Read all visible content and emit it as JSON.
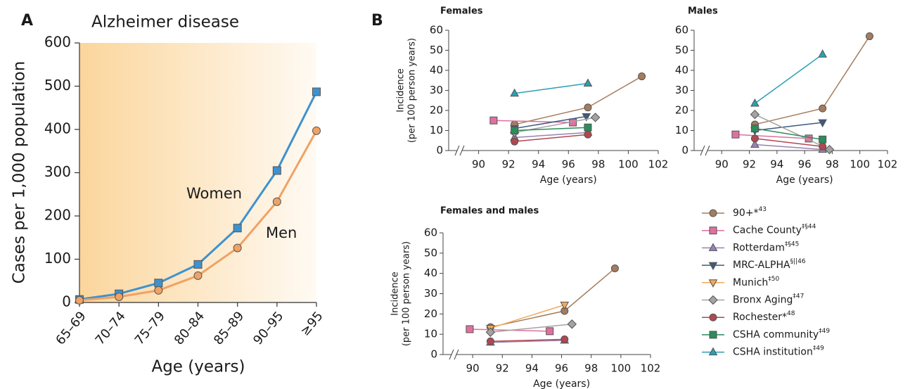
{
  "panels": [
    "A",
    "B"
  ],
  "legend": [
    {
      "name": "90+*",
      "note": "43",
      "color": "#a57c5e",
      "marker": "circle"
    },
    {
      "name": "Cache County",
      "note": "‡§44",
      "color": "#e0709f",
      "marker": "square"
    },
    {
      "name": "Rotterdam",
      "note": "‡§45",
      "color": "#9882b4",
      "marker": "tri-up"
    },
    {
      "name": "MRC-ALPHA",
      "note": "§||46",
      "color": "#3d5a7f",
      "marker": "tri-down"
    },
    {
      "name": "Munich",
      "note": "‡50",
      "color": "#f2a95a",
      "marker": "tri-down"
    },
    {
      "name": "Bronx Aging",
      "note": "‡47",
      "color": "#a3a3a3",
      "marker": "diamond"
    },
    {
      "name": "Rochester*",
      "note": "48",
      "color": "#b2474f",
      "marker": "circle"
    },
    {
      "name": "CSHA community",
      "note": "‡49",
      "color": "#2b8c5c",
      "marker": "square"
    },
    {
      "name": "CSHA institution",
      "note": "‡49",
      "color": "#2a9fb6",
      "marker": "tri-up"
    }
  ],
  "chart_data": [
    {
      "type": "line",
      "title": "Alzheimer disease",
      "xlabel": "Age (years)",
      "ylabel": "Cases per 1,000 population",
      "categories": [
        "65–69",
        "70–74",
        "75–79",
        "80–84",
        "85–89",
        "90–95",
        "≥95"
      ],
      "series": [
        {
          "name": "Women",
          "color": "#3d92cf",
          "marker": "square",
          "values": [
            7,
            20,
            45,
            88,
            172,
            305,
            487
          ]
        },
        {
          "name": "Men",
          "color": "#f0a264",
          "marker": "circle",
          "values": [
            5,
            13,
            28,
            62,
            126,
            233,
            397
          ]
        }
      ],
      "ylim": [
        0,
        600
      ],
      "yticks": [
        0,
        100,
        200,
        300,
        400,
        500,
        600
      ]
    },
    {
      "type": "line",
      "title": "Females",
      "xlabel": "Age (years)",
      "ylabel": [
        "Incidence",
        "(per 100 person years)"
      ],
      "xlim": [
        88,
        102
      ],
      "xticks": [
        90,
        92,
        94,
        96,
        98,
        100,
        102
      ],
      "ylim": [
        0,
        60
      ],
      "yticks": [
        0,
        10,
        20,
        30,
        40,
        50,
        60
      ],
      "series": [
        {
          "name": "90+*",
          "x": [
            92.4,
            97.3,
            100.9
          ],
          "values": [
            13,
            21.5,
            37
          ]
        },
        {
          "name": "Cache County",
          "x": [
            91,
            96.3
          ],
          "values": [
            15,
            14
          ]
        },
        {
          "name": "Rotterdam",
          "x": [
            92.4,
            97.3
          ],
          "values": [
            6.5,
            9
          ]
        },
        {
          "name": "MRC-ALPHA",
          "x": [
            92.4,
            97.2
          ],
          "values": [
            11,
            17
          ]
        },
        {
          "name": "Bronx Aging",
          "x": [
            92.4,
            97.8
          ],
          "values": [
            9,
            16.5
          ]
        },
        {
          "name": "Rochester*",
          "x": [
            92.4,
            97.3
          ],
          "values": [
            4.5,
            8
          ]
        },
        {
          "name": "CSHA community",
          "x": [
            92.4,
            97.3
          ],
          "values": [
            10,
            11.5
          ]
        },
        {
          "name": "CSHA institution",
          "x": [
            92.4,
            97.3
          ],
          "values": [
            28.5,
            33.5
          ]
        }
      ]
    },
    {
      "type": "line",
      "title": "Males",
      "xlabel": "Age (years)",
      "xlim": [
        88,
        102
      ],
      "xticks": [
        90,
        92,
        94,
        96,
        98,
        100,
        102
      ],
      "ylim": [
        0,
        60
      ],
      "yticks": [
        0,
        10,
        20,
        30,
        40,
        50,
        60
      ],
      "series": [
        {
          "name": "90+*",
          "x": [
            92.4,
            97.3,
            100.7
          ],
          "values": [
            13,
            21,
            57
          ]
        },
        {
          "name": "Cache County",
          "x": [
            91,
            96.3
          ],
          "values": [
            8,
            6
          ]
        },
        {
          "name": "Rotterdam",
          "x": [
            92.4,
            97.3
          ],
          "values": [
            3,
            0.5
          ]
        },
        {
          "name": "MRC-ALPHA",
          "x": [
            92.4,
            97.3
          ],
          "values": [
            10,
            14
          ]
        },
        {
          "name": "Bronx Aging",
          "x": [
            92.4,
            97.8
          ],
          "values": [
            18,
            0.5
          ]
        },
        {
          "name": "Rochester*",
          "x": [
            92.4,
            97.3
          ],
          "values": [
            6,
            2
          ]
        },
        {
          "name": "CSHA community",
          "x": [
            92.4,
            97.3
          ],
          "values": [
            11,
            5.5
          ]
        },
        {
          "name": "CSHA institution",
          "x": [
            92.4,
            97.3
          ],
          "values": [
            23.5,
            48
          ]
        }
      ]
    },
    {
      "type": "line",
      "title": "Females and males",
      "xlabel": "Age (years)",
      "ylabel": [
        "Incidence",
        "(per 100 person years)"
      ],
      "xlim": [
        88,
        102
      ],
      "xticks": [
        90,
        92,
        94,
        96,
        98,
        100,
        102
      ],
      "ylim": [
        0,
        60
      ],
      "yticks": [
        0,
        10,
        20,
        30,
        40,
        50,
        60
      ],
      "series": [
        {
          "name": "90+*",
          "x": [
            91.2,
            96.2,
            99.6
          ],
          "values": [
            13.5,
            21.5,
            42.5
          ]
        },
        {
          "name": "Cache County",
          "x": [
            89.8,
            95.2
          ],
          "values": [
            12.5,
            11.5
          ]
        },
        {
          "name": "Rotterdam",
          "x": [
            91.2,
            96.2
          ],
          "values": [
            6,
            7
          ]
        },
        {
          "name": "Munich",
          "x": [
            91.2,
            96.2
          ],
          "values": [
            13,
            24.5
          ]
        },
        {
          "name": "Bronx Aging",
          "x": [
            91.2,
            96.7
          ],
          "values": [
            11,
            15
          ]
        },
        {
          "name": "Rochester*",
          "x": [
            91.2,
            96.2
          ],
          "values": [
            6.5,
            7.5
          ]
        }
      ]
    }
  ]
}
